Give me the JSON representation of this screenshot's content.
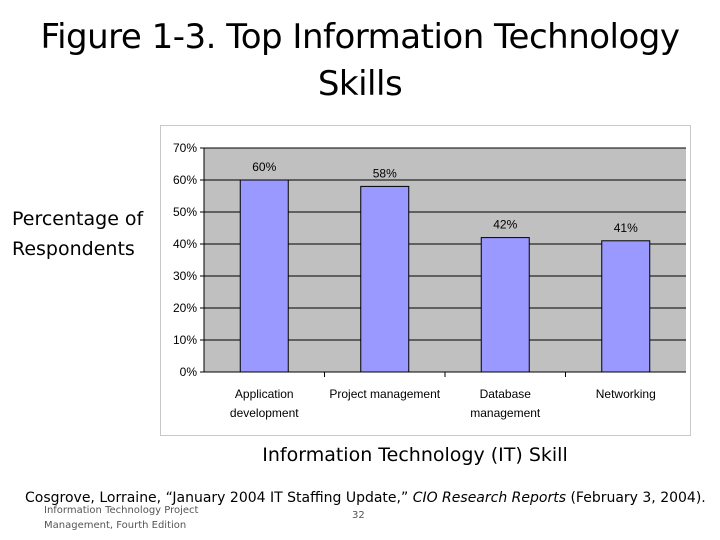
{
  "slide": {
    "title_line1": "Figure 1-3. Top Information Technology",
    "title_line2": "Skills",
    "ylabel_line1": "Percentage of",
    "ylabel_line2": "Respondents",
    "xlabel": "Information Technology (IT) Skill",
    "citation_author": "Cosgrove, Lorraine, “January 2004 IT Staffing Update,” ",
    "citation_source": "CIO Research Reports",
    "citation_date": " (February 3, 2004).",
    "footer_line1": "Information Technology Project",
    "footer_line2": "Management, Fourth Edition",
    "page_number": "32"
  },
  "chart_data": {
    "type": "bar",
    "categories": [
      [
        "Application",
        "development"
      ],
      [
        "Project management"
      ],
      [
        "Database",
        "management"
      ],
      [
        "Networking"
      ]
    ],
    "values": [
      60,
      58,
      42,
      41
    ],
    "data_labels": [
      "60%",
      "58%",
      "42%",
      "41%"
    ],
    "yticks": [
      "0%",
      "10%",
      "20%",
      "30%",
      "40%",
      "50%",
      "60%",
      "70%"
    ],
    "ylim": [
      0,
      70
    ],
    "grid": true,
    "colors": {
      "bar_fill": "#9999ff",
      "bar_stroke": "#000000",
      "plot_bg": "#c0c0c0",
      "gridline": "#000000"
    }
  }
}
